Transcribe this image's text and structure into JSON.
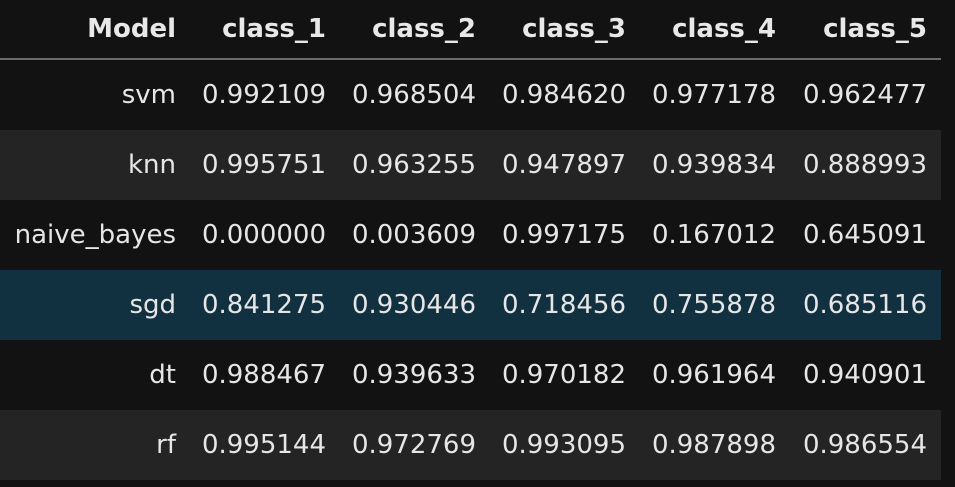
{
  "table": {
    "columns": [
      "Model",
      "class_1",
      "class_2",
      "class_3",
      "class_4",
      "class_5"
    ],
    "rows": [
      {
        "model": "svm",
        "values": [
          "0.992109",
          "0.968504",
          "0.984620",
          "0.977178",
          "0.962477"
        ]
      },
      {
        "model": "knn",
        "values": [
          "0.995751",
          "0.963255",
          "0.947897",
          "0.939834",
          "0.888993"
        ]
      },
      {
        "model": "naive_bayes",
        "values": [
          "0.000000",
          "0.003609",
          "0.997175",
          "0.167012",
          "0.645091"
        ]
      },
      {
        "model": "sgd",
        "values": [
          "0.841275",
          "0.930446",
          "0.718456",
          "0.755878",
          "0.685116"
        ]
      },
      {
        "model": "dt",
        "values": [
          "0.988467",
          "0.939633",
          "0.970182",
          "0.961964",
          "0.940901"
        ]
      },
      {
        "model": "rf",
        "values": [
          "0.995144",
          "0.972769",
          "0.993095",
          "0.987898",
          "0.986554"
        ]
      }
    ],
    "highlighted_row": "sgd"
  },
  "colors": {
    "background": "#121212",
    "row_stripe": "#242424",
    "row_highlight": "#113040",
    "header_rule": "#6b6b6b",
    "text": "#e6e6e6"
  }
}
